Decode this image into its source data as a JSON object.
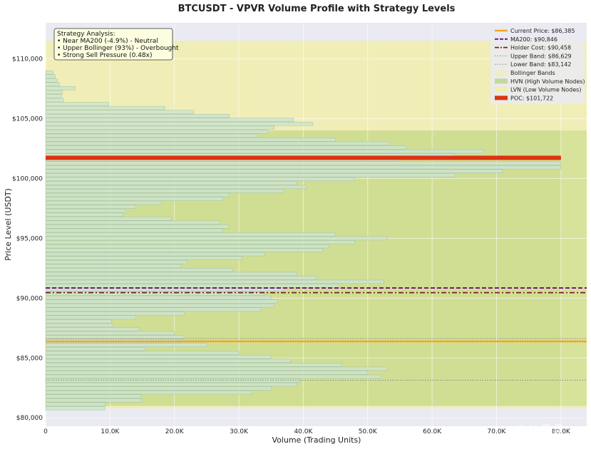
{
  "chart_data": {
    "type": "bar",
    "orientation": "horizontal",
    "title": "BTCUSDT - VPVR Volume Profile with Strategy Levels",
    "xlabel": "Volume (Trading Units)",
    "ylabel": "Price Level (USDT)",
    "xlim": [
      0,
      84000
    ],
    "ylim": [
      79300,
      113000
    ],
    "x_ticks": [
      0,
      10000,
      20000,
      30000,
      40000,
      50000,
      60000,
      70000,
      80000
    ],
    "x_tick_labels": [
      "0",
      "10.0K",
      "20.0K",
      "30.0K",
      "40.0K",
      "50.0K",
      "60.0K",
      "70.0K",
      "80.0K"
    ],
    "y_ticks": [
      80000,
      85000,
      90000,
      95000,
      100000,
      105000,
      110000
    ],
    "y_tick_labels": [
      "$80,000",
      "$85,000",
      "$90,000",
      "$95,000",
      "$100,000",
      "$105,000",
      "$110,000"
    ],
    "grid": true,
    "bin_size": 330,
    "profile": [
      {
        "price": 80800,
        "volume": 9200
      },
      {
        "price": 81130,
        "volume": 9300
      },
      {
        "price": 81460,
        "volume": 15000
      },
      {
        "price": 81790,
        "volume": 14800
      },
      {
        "price": 82120,
        "volume": 32000
      },
      {
        "price": 82450,
        "volume": 35000
      },
      {
        "price": 82780,
        "volume": 39000
      },
      {
        "price": 83110,
        "volume": 39500
      },
      {
        "price": 83440,
        "volume": 52000
      },
      {
        "price": 83770,
        "volume": 50000
      },
      {
        "price": 84100,
        "volume": 53000
      },
      {
        "price": 84430,
        "volume": 46000
      },
      {
        "price": 84760,
        "volume": 38000
      },
      {
        "price": 85090,
        "volume": 35000
      },
      {
        "price": 85420,
        "volume": 30000
      },
      {
        "price": 85750,
        "volume": 15500
      },
      {
        "price": 86080,
        "volume": 25000
      },
      {
        "price": 86410,
        "volume": 21000
      },
      {
        "price": 86740,
        "volume": 21500
      },
      {
        "price": 87070,
        "volume": 20000
      },
      {
        "price": 87400,
        "volume": 14500
      },
      {
        "price": 87730,
        "volume": 10500
      },
      {
        "price": 88060,
        "volume": 10200
      },
      {
        "price": 88390,
        "volume": 14000
      },
      {
        "price": 88720,
        "volume": 21500
      },
      {
        "price": 89050,
        "volume": 33500
      },
      {
        "price": 89380,
        "volume": 35500
      },
      {
        "price": 89710,
        "volume": 36000
      },
      {
        "price": 90040,
        "volume": 35000
      },
      {
        "price": 90370,
        "volume": 34000
      },
      {
        "price": 90700,
        "volume": 37000
      },
      {
        "price": 91030,
        "volume": 45500
      },
      {
        "price": 91360,
        "volume": 52500
      },
      {
        "price": 91690,
        "volume": 42000
      },
      {
        "price": 92020,
        "volume": 39000
      },
      {
        "price": 92350,
        "volume": 29000
      },
      {
        "price": 92680,
        "volume": 21000
      },
      {
        "price": 93010,
        "volume": 22000
      },
      {
        "price": 93340,
        "volume": 30500
      },
      {
        "price": 93670,
        "volume": 34000
      },
      {
        "price": 94000,
        "volume": 43000
      },
      {
        "price": 94330,
        "volume": 44000
      },
      {
        "price": 94660,
        "volume": 48000
      },
      {
        "price": 94990,
        "volume": 53000
      },
      {
        "price": 95320,
        "volume": 45000
      },
      {
        "price": 95650,
        "volume": 27500
      },
      {
        "price": 95980,
        "volume": 28500
      },
      {
        "price": 96310,
        "volume": 27000
      },
      {
        "price": 96640,
        "volume": 19500
      },
      {
        "price": 96970,
        "volume": 12000
      },
      {
        "price": 97300,
        "volume": 12500
      },
      {
        "price": 97630,
        "volume": 14000
      },
      {
        "price": 97960,
        "volume": 18000
      },
      {
        "price": 98290,
        "volume": 27500
      },
      {
        "price": 98620,
        "volume": 28500
      },
      {
        "price": 98950,
        "volume": 37000
      },
      {
        "price": 99280,
        "volume": 40500
      },
      {
        "price": 99610,
        "volume": 39000
      },
      {
        "price": 99940,
        "volume": 48000
      },
      {
        "price": 100270,
        "volume": 63500
      },
      {
        "price": 100600,
        "volume": 71000
      },
      {
        "price": 100930,
        "volume": 80000
      },
      {
        "price": 101260,
        "volume": 80000
      },
      {
        "price": 101590,
        "volume": 55000
      },
      {
        "price": 101920,
        "volume": 63500
      },
      {
        "price": 102250,
        "volume": 68000
      },
      {
        "price": 102580,
        "volume": 56000
      },
      {
        "price": 102910,
        "volume": 53500
      },
      {
        "price": 103240,
        "volume": 45000
      },
      {
        "price": 103570,
        "volume": 33000
      },
      {
        "price": 103900,
        "volume": 34500
      },
      {
        "price": 104230,
        "volume": 35500
      },
      {
        "price": 104560,
        "volume": 41500
      },
      {
        "price": 104890,
        "volume": 38500
      },
      {
        "price": 105220,
        "volume": 28500
      },
      {
        "price": 105550,
        "volume": 23000
      },
      {
        "price": 105880,
        "volume": 18500
      },
      {
        "price": 106210,
        "volume": 9800
      },
      {
        "price": 106540,
        "volume": 2800
      },
      {
        "price": 106870,
        "volume": 2500
      },
      {
        "price": 107200,
        "volume": 2600
      },
      {
        "price": 107530,
        "volume": 4600
      },
      {
        "price": 107860,
        "volume": 2200
      },
      {
        "price": 108190,
        "volume": 1800
      },
      {
        "price": 108520,
        "volume": 1500
      },
      {
        "price": 108850,
        "volume": 1200
      }
    ],
    "hvn_zones": [
      [
        81000,
        104000
      ]
    ],
    "lvn_zones": [
      [
        104000,
        111500
      ],
      [
        80800,
        81000
      ]
    ],
    "bollinger_band": [
      80800,
      111500
    ],
    "levels": {
      "current_price": 86385,
      "ma200": 90846,
      "holder_cost": 90458,
      "upper_band": 86629,
      "lower_band": 83142,
      "poc": 101722
    },
    "poc_volume": 80000,
    "legend": [
      {
        "key": "current",
        "label": "Current Price: $86,385"
      },
      {
        "key": "ma200",
        "label": "MA200: $90,846"
      },
      {
        "key": "holder",
        "label": "Holder Cost: $90,458"
      },
      {
        "key": "upper",
        "label": "Upper Band: $86,629"
      },
      {
        "key": "lower",
        "label": "Lower Band: $83,142"
      },
      {
        "key": "bollinger",
        "label": "Bollinger Bands"
      },
      {
        "key": "hvn",
        "label": "HVN (High Volume Nodes)"
      },
      {
        "key": "lvn",
        "label": "LVN (Low Volume Nodes)"
      },
      {
        "key": "poc",
        "label": "POC: $101,722"
      }
    ],
    "legend_position": "top-right",
    "annotation": {
      "title": "Strategy Analysis:",
      "lines": [
        "• Near MA200 (-4.9%) - Neutral",
        "• Upper Bollinger (93%) - Overbought",
        "• Strong Sell Pressure (0.48x)"
      ],
      "position": "top-left"
    }
  },
  "colors": {
    "background": "#eaeaf2",
    "bar_fill": "#cfe3cf",
    "bar_stroke": "#9fc49f",
    "hvn": "#a9cc6b",
    "lvn": "#f2efa2",
    "current": "#f5a623",
    "ma200": "#6a0d83",
    "holder": "#7a1f1f",
    "band_line": "#888888",
    "poc": "#dd3311"
  },
  "watermark": "@AI 看盘"
}
